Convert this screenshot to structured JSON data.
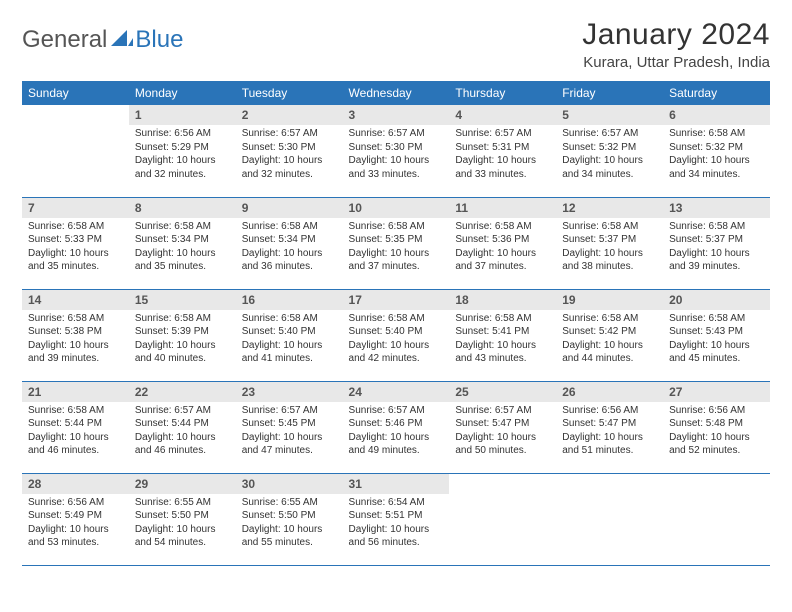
{
  "brand": {
    "part1": "General",
    "part2": "Blue"
  },
  "title": "January 2024",
  "location": "Kurara, Uttar Pradesh, India",
  "colors": {
    "header_bg": "#2a74b8",
    "header_text": "#ffffff",
    "daynum_bg": "#e8e8e8",
    "rule": "#2a74b8",
    "brand_blue": "#2a74b8",
    "brand_gray": "#555555"
  },
  "weekdays": [
    "Sunday",
    "Monday",
    "Tuesday",
    "Wednesday",
    "Thursday",
    "Friday",
    "Saturday"
  ],
  "weeks": [
    [
      {
        "n": "",
        "sr": "",
        "ss": "",
        "dl": ""
      },
      {
        "n": "1",
        "sr": "Sunrise: 6:56 AM",
        "ss": "Sunset: 5:29 PM",
        "dl": "Daylight: 10 hours and 32 minutes."
      },
      {
        "n": "2",
        "sr": "Sunrise: 6:57 AM",
        "ss": "Sunset: 5:30 PM",
        "dl": "Daylight: 10 hours and 32 minutes."
      },
      {
        "n": "3",
        "sr": "Sunrise: 6:57 AM",
        "ss": "Sunset: 5:30 PM",
        "dl": "Daylight: 10 hours and 33 minutes."
      },
      {
        "n": "4",
        "sr": "Sunrise: 6:57 AM",
        "ss": "Sunset: 5:31 PM",
        "dl": "Daylight: 10 hours and 33 minutes."
      },
      {
        "n": "5",
        "sr": "Sunrise: 6:57 AM",
        "ss": "Sunset: 5:32 PM",
        "dl": "Daylight: 10 hours and 34 minutes."
      },
      {
        "n": "6",
        "sr": "Sunrise: 6:58 AM",
        "ss": "Sunset: 5:32 PM",
        "dl": "Daylight: 10 hours and 34 minutes."
      }
    ],
    [
      {
        "n": "7",
        "sr": "Sunrise: 6:58 AM",
        "ss": "Sunset: 5:33 PM",
        "dl": "Daylight: 10 hours and 35 minutes."
      },
      {
        "n": "8",
        "sr": "Sunrise: 6:58 AM",
        "ss": "Sunset: 5:34 PM",
        "dl": "Daylight: 10 hours and 35 minutes."
      },
      {
        "n": "9",
        "sr": "Sunrise: 6:58 AM",
        "ss": "Sunset: 5:34 PM",
        "dl": "Daylight: 10 hours and 36 minutes."
      },
      {
        "n": "10",
        "sr": "Sunrise: 6:58 AM",
        "ss": "Sunset: 5:35 PM",
        "dl": "Daylight: 10 hours and 37 minutes."
      },
      {
        "n": "11",
        "sr": "Sunrise: 6:58 AM",
        "ss": "Sunset: 5:36 PM",
        "dl": "Daylight: 10 hours and 37 minutes."
      },
      {
        "n": "12",
        "sr": "Sunrise: 6:58 AM",
        "ss": "Sunset: 5:37 PM",
        "dl": "Daylight: 10 hours and 38 minutes."
      },
      {
        "n": "13",
        "sr": "Sunrise: 6:58 AM",
        "ss": "Sunset: 5:37 PM",
        "dl": "Daylight: 10 hours and 39 minutes."
      }
    ],
    [
      {
        "n": "14",
        "sr": "Sunrise: 6:58 AM",
        "ss": "Sunset: 5:38 PM",
        "dl": "Daylight: 10 hours and 39 minutes."
      },
      {
        "n": "15",
        "sr": "Sunrise: 6:58 AM",
        "ss": "Sunset: 5:39 PM",
        "dl": "Daylight: 10 hours and 40 minutes."
      },
      {
        "n": "16",
        "sr": "Sunrise: 6:58 AM",
        "ss": "Sunset: 5:40 PM",
        "dl": "Daylight: 10 hours and 41 minutes."
      },
      {
        "n": "17",
        "sr": "Sunrise: 6:58 AM",
        "ss": "Sunset: 5:40 PM",
        "dl": "Daylight: 10 hours and 42 minutes."
      },
      {
        "n": "18",
        "sr": "Sunrise: 6:58 AM",
        "ss": "Sunset: 5:41 PM",
        "dl": "Daylight: 10 hours and 43 minutes."
      },
      {
        "n": "19",
        "sr": "Sunrise: 6:58 AM",
        "ss": "Sunset: 5:42 PM",
        "dl": "Daylight: 10 hours and 44 minutes."
      },
      {
        "n": "20",
        "sr": "Sunrise: 6:58 AM",
        "ss": "Sunset: 5:43 PM",
        "dl": "Daylight: 10 hours and 45 minutes."
      }
    ],
    [
      {
        "n": "21",
        "sr": "Sunrise: 6:58 AM",
        "ss": "Sunset: 5:44 PM",
        "dl": "Daylight: 10 hours and 46 minutes."
      },
      {
        "n": "22",
        "sr": "Sunrise: 6:57 AM",
        "ss": "Sunset: 5:44 PM",
        "dl": "Daylight: 10 hours and 46 minutes."
      },
      {
        "n": "23",
        "sr": "Sunrise: 6:57 AM",
        "ss": "Sunset: 5:45 PM",
        "dl": "Daylight: 10 hours and 47 minutes."
      },
      {
        "n": "24",
        "sr": "Sunrise: 6:57 AM",
        "ss": "Sunset: 5:46 PM",
        "dl": "Daylight: 10 hours and 49 minutes."
      },
      {
        "n": "25",
        "sr": "Sunrise: 6:57 AM",
        "ss": "Sunset: 5:47 PM",
        "dl": "Daylight: 10 hours and 50 minutes."
      },
      {
        "n": "26",
        "sr": "Sunrise: 6:56 AM",
        "ss": "Sunset: 5:47 PM",
        "dl": "Daylight: 10 hours and 51 minutes."
      },
      {
        "n": "27",
        "sr": "Sunrise: 6:56 AM",
        "ss": "Sunset: 5:48 PM",
        "dl": "Daylight: 10 hours and 52 minutes."
      }
    ],
    [
      {
        "n": "28",
        "sr": "Sunrise: 6:56 AM",
        "ss": "Sunset: 5:49 PM",
        "dl": "Daylight: 10 hours and 53 minutes."
      },
      {
        "n": "29",
        "sr": "Sunrise: 6:55 AM",
        "ss": "Sunset: 5:50 PM",
        "dl": "Daylight: 10 hours and 54 minutes."
      },
      {
        "n": "30",
        "sr": "Sunrise: 6:55 AM",
        "ss": "Sunset: 5:50 PM",
        "dl": "Daylight: 10 hours and 55 minutes."
      },
      {
        "n": "31",
        "sr": "Sunrise: 6:54 AM",
        "ss": "Sunset: 5:51 PM",
        "dl": "Daylight: 10 hours and 56 minutes."
      },
      {
        "n": "",
        "sr": "",
        "ss": "",
        "dl": ""
      },
      {
        "n": "",
        "sr": "",
        "ss": "",
        "dl": ""
      },
      {
        "n": "",
        "sr": "",
        "ss": "",
        "dl": ""
      }
    ]
  ]
}
